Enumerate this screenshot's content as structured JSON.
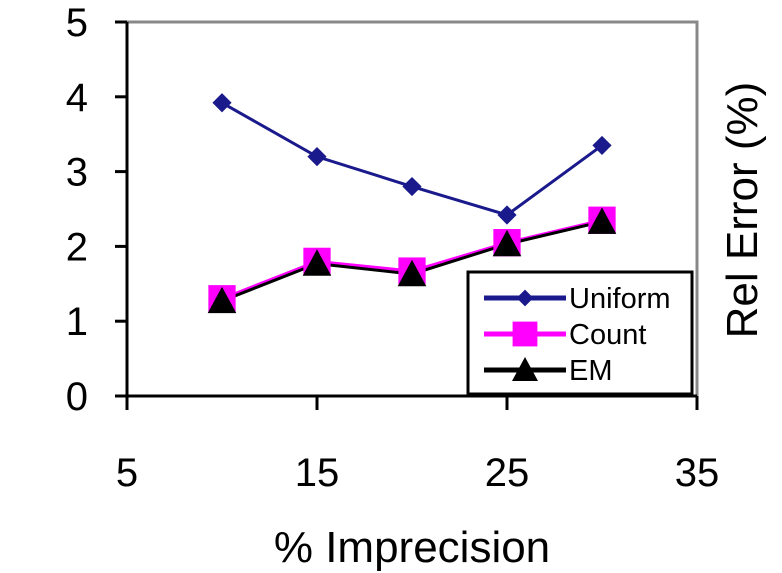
{
  "chart_data": {
    "type": "line",
    "xlabel": "% Imprecision",
    "ylabel": "Rel Error (%)",
    "xlim": [
      5,
      35
    ],
    "ylim": [
      0,
      5
    ],
    "xticks": [
      "5",
      "15",
      "25",
      "35"
    ],
    "yticks": [
      "0",
      "1",
      "2",
      "3",
      "4",
      "5"
    ],
    "grid": false,
    "legend_position": "bottom-right",
    "series": [
      {
        "name": "Uniform",
        "color": "#1a1a8c",
        "marker": "diamond",
        "x": [
          10,
          15,
          20,
          25,
          30
        ],
        "y": [
          3.92,
          3.2,
          2.8,
          2.42,
          3.35
        ]
      },
      {
        "name": "Count",
        "color": "#ff00ff",
        "marker": "square",
        "x": [
          10,
          15,
          20,
          25,
          30
        ],
        "y": [
          1.3,
          1.8,
          1.67,
          2.05,
          2.35
        ]
      },
      {
        "name": "EM",
        "color": "#000000",
        "marker": "triangle",
        "x": [
          10,
          15,
          20,
          25,
          30
        ],
        "y": [
          1.27,
          1.77,
          1.63,
          2.03,
          2.33
        ]
      }
    ]
  }
}
